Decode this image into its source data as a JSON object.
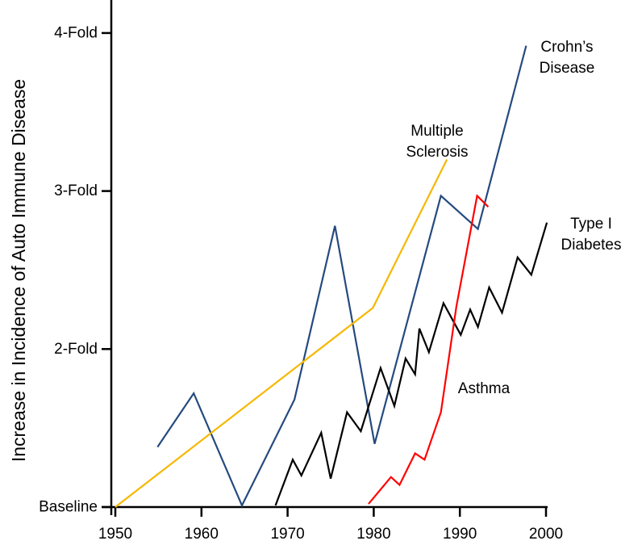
{
  "chart_data": {
    "type": "line",
    "title": "",
    "xlabel": "",
    "ylabel": "Increase in Incidence of Auto Immune Disease",
    "xlim": [
      1950,
      2000
    ],
    "ylim": [
      1,
      4.1
    ],
    "x_ticks": [
      1950,
      1960,
      1970,
      1980,
      1990,
      2000
    ],
    "x_tick_labels": [
      "1950",
      "1960",
      "1970",
      "1980",
      "1990",
      "2000"
    ],
    "y_ticks": [
      1,
      2,
      3,
      4
    ],
    "y_tick_labels": [
      "Baseline",
      "2-Fold",
      "3-Fold",
      "4-Fold"
    ],
    "grid": false,
    "legend_position": "inline labels",
    "series": [
      {
        "name": "Crohn's Disease",
        "label_lines": [
          "Crohn’s",
          "Disease"
        ],
        "color": "#254a7f",
        "points": [
          [
            1954.9,
            1.38
          ],
          [
            1959.1,
            1.72
          ],
          [
            1964.7,
            1.01
          ],
          [
            1970.8,
            1.68
          ],
          [
            1975.5,
            2.78
          ],
          [
            1980.1,
            1.4
          ],
          [
            1987.8,
            2.97
          ],
          [
            1992.1,
            2.76
          ],
          [
            1997.7,
            3.92
          ]
        ]
      },
      {
        "name": "Multiple Sclerosis",
        "label_lines": [
          "Multiple",
          "Sclerosis"
        ],
        "color": "#f5b800",
        "points": [
          [
            1950.0,
            1.0
          ],
          [
            1979.9,
            2.26
          ],
          [
            1988.5,
            3.2
          ]
        ]
      },
      {
        "name": "Type I Diabetes",
        "label_lines": [
          "Type I",
          "Diabetes"
        ],
        "color": "#000000",
        "points": [
          [
            1968.6,
            1.01
          ],
          [
            1970.6,
            1.3
          ],
          [
            1971.6,
            1.2
          ],
          [
            1973.9,
            1.47
          ],
          [
            1975.0,
            1.18
          ],
          [
            1976.9,
            1.6
          ],
          [
            1978.5,
            1.48
          ],
          [
            1980.8,
            1.88
          ],
          [
            1982.4,
            1.64
          ],
          [
            1983.7,
            1.94
          ],
          [
            1984.8,
            1.84
          ],
          [
            1985.3,
            2.13
          ],
          [
            1986.4,
            1.98
          ],
          [
            1988.1,
            2.29
          ],
          [
            1990.1,
            2.09
          ],
          [
            1991.2,
            2.25
          ],
          [
            1992.1,
            2.14
          ],
          [
            1993.4,
            2.39
          ],
          [
            1994.9,
            2.23
          ],
          [
            1996.7,
            2.58
          ],
          [
            1998.3,
            2.47
          ],
          [
            2000.1,
            2.8
          ]
        ]
      },
      {
        "name": "Asthma",
        "label_lines": [
          "Asthma"
        ],
        "color": "#ff0000",
        "points": [
          [
            1979.4,
            1.02
          ],
          [
            1982.0,
            1.19
          ],
          [
            1983.0,
            1.14
          ],
          [
            1984.8,
            1.34
          ],
          [
            1985.9,
            1.3
          ],
          [
            1987.8,
            1.6
          ],
          [
            1989.6,
            2.27
          ],
          [
            1992.0,
            2.97
          ],
          [
            1993.3,
            2.9
          ]
        ]
      }
    ]
  }
}
